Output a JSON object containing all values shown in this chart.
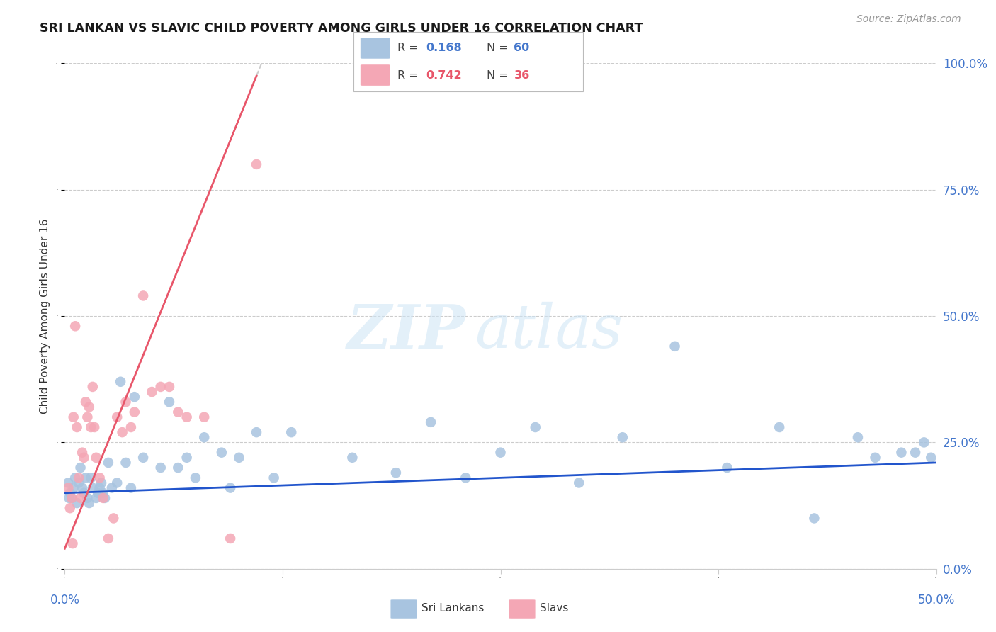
{
  "title": "SRI LANKAN VS SLAVIC CHILD POVERTY AMONG GIRLS UNDER 16 CORRELATION CHART",
  "source": "Source: ZipAtlas.com",
  "ylabel": "Child Poverty Among Girls Under 16",
  "ytick_vals": [
    0,
    25,
    50,
    75,
    100
  ],
  "ytick_labels": [
    "0.0%",
    "25.0%",
    "50.0%",
    "75.0%",
    "100.0%"
  ],
  "xlim": [
    0,
    50
  ],
  "ylim": [
    0,
    100
  ],
  "sri_lankan_color": "#a8c4e0",
  "slavic_color": "#f4a7b5",
  "sri_lankan_line_color": "#2255cc",
  "slavic_line_color": "#e8566a",
  "sri_lankan_R": "0.168",
  "sri_lankan_N": "60",
  "slavic_R": "0.742",
  "slavic_N": "36",
  "sri_lankan_x": [
    0.2,
    0.3,
    0.4,
    0.5,
    0.6,
    0.7,
    0.8,
    0.9,
    1.0,
    1.1,
    1.2,
    1.3,
    1.4,
    1.5,
    1.6,
    1.8,
    2.0,
    2.1,
    2.2,
    2.3,
    2.5,
    2.7,
    3.2,
    3.5,
    3.8,
    4.0,
    4.5,
    5.5,
    6.0,
    6.5,
    7.0,
    7.5,
    8.0,
    9.0,
    9.5,
    10.0,
    11.0,
    12.0,
    13.0,
    16.5,
    19.0,
    21.0,
    23.0,
    25.0,
    27.0,
    29.5,
    32.0,
    35.0,
    38.0,
    41.0,
    43.0,
    45.5,
    46.5,
    48.0,
    48.8,
    49.3,
    49.7,
    0.25,
    1.9,
    3.0
  ],
  "sri_lankan_y": [
    17,
    15,
    14,
    16,
    18,
    13,
    17,
    20,
    16,
    15,
    18,
    14,
    13,
    18,
    16,
    14,
    16,
    17,
    15,
    14,
    21,
    16,
    37,
    21,
    16,
    34,
    22,
    20,
    33,
    20,
    22,
    18,
    26,
    23,
    16,
    22,
    27,
    18,
    27,
    22,
    19,
    29,
    18,
    23,
    28,
    17,
    26,
    44,
    20,
    28,
    10,
    26,
    22,
    23,
    23,
    25,
    22,
    14,
    15,
    17
  ],
  "slavic_x": [
    0.2,
    0.3,
    0.4,
    0.5,
    0.6,
    0.7,
    0.8,
    0.9,
    1.0,
    1.1,
    1.2,
    1.3,
    1.4,
    1.5,
    1.6,
    1.7,
    1.8,
    2.0,
    2.2,
    2.5,
    2.8,
    3.0,
    3.3,
    3.5,
    3.8,
    4.0,
    4.5,
    5.0,
    5.5,
    6.0,
    6.5,
    7.0,
    8.0,
    9.5,
    0.45,
    11.0
  ],
  "slavic_y": [
    16,
    12,
    14,
    30,
    48,
    28,
    18,
    14,
    23,
    22,
    33,
    30,
    32,
    28,
    36,
    28,
    22,
    18,
    14,
    6,
    10,
    30,
    27,
    33,
    28,
    31,
    54,
    35,
    36,
    36,
    31,
    30,
    30,
    6,
    5,
    80
  ],
  "sl_line_intercept": 15.0,
  "sl_line_slope": 0.12,
  "sv_line_intercept": 4.0,
  "sv_line_slope": 8.5
}
